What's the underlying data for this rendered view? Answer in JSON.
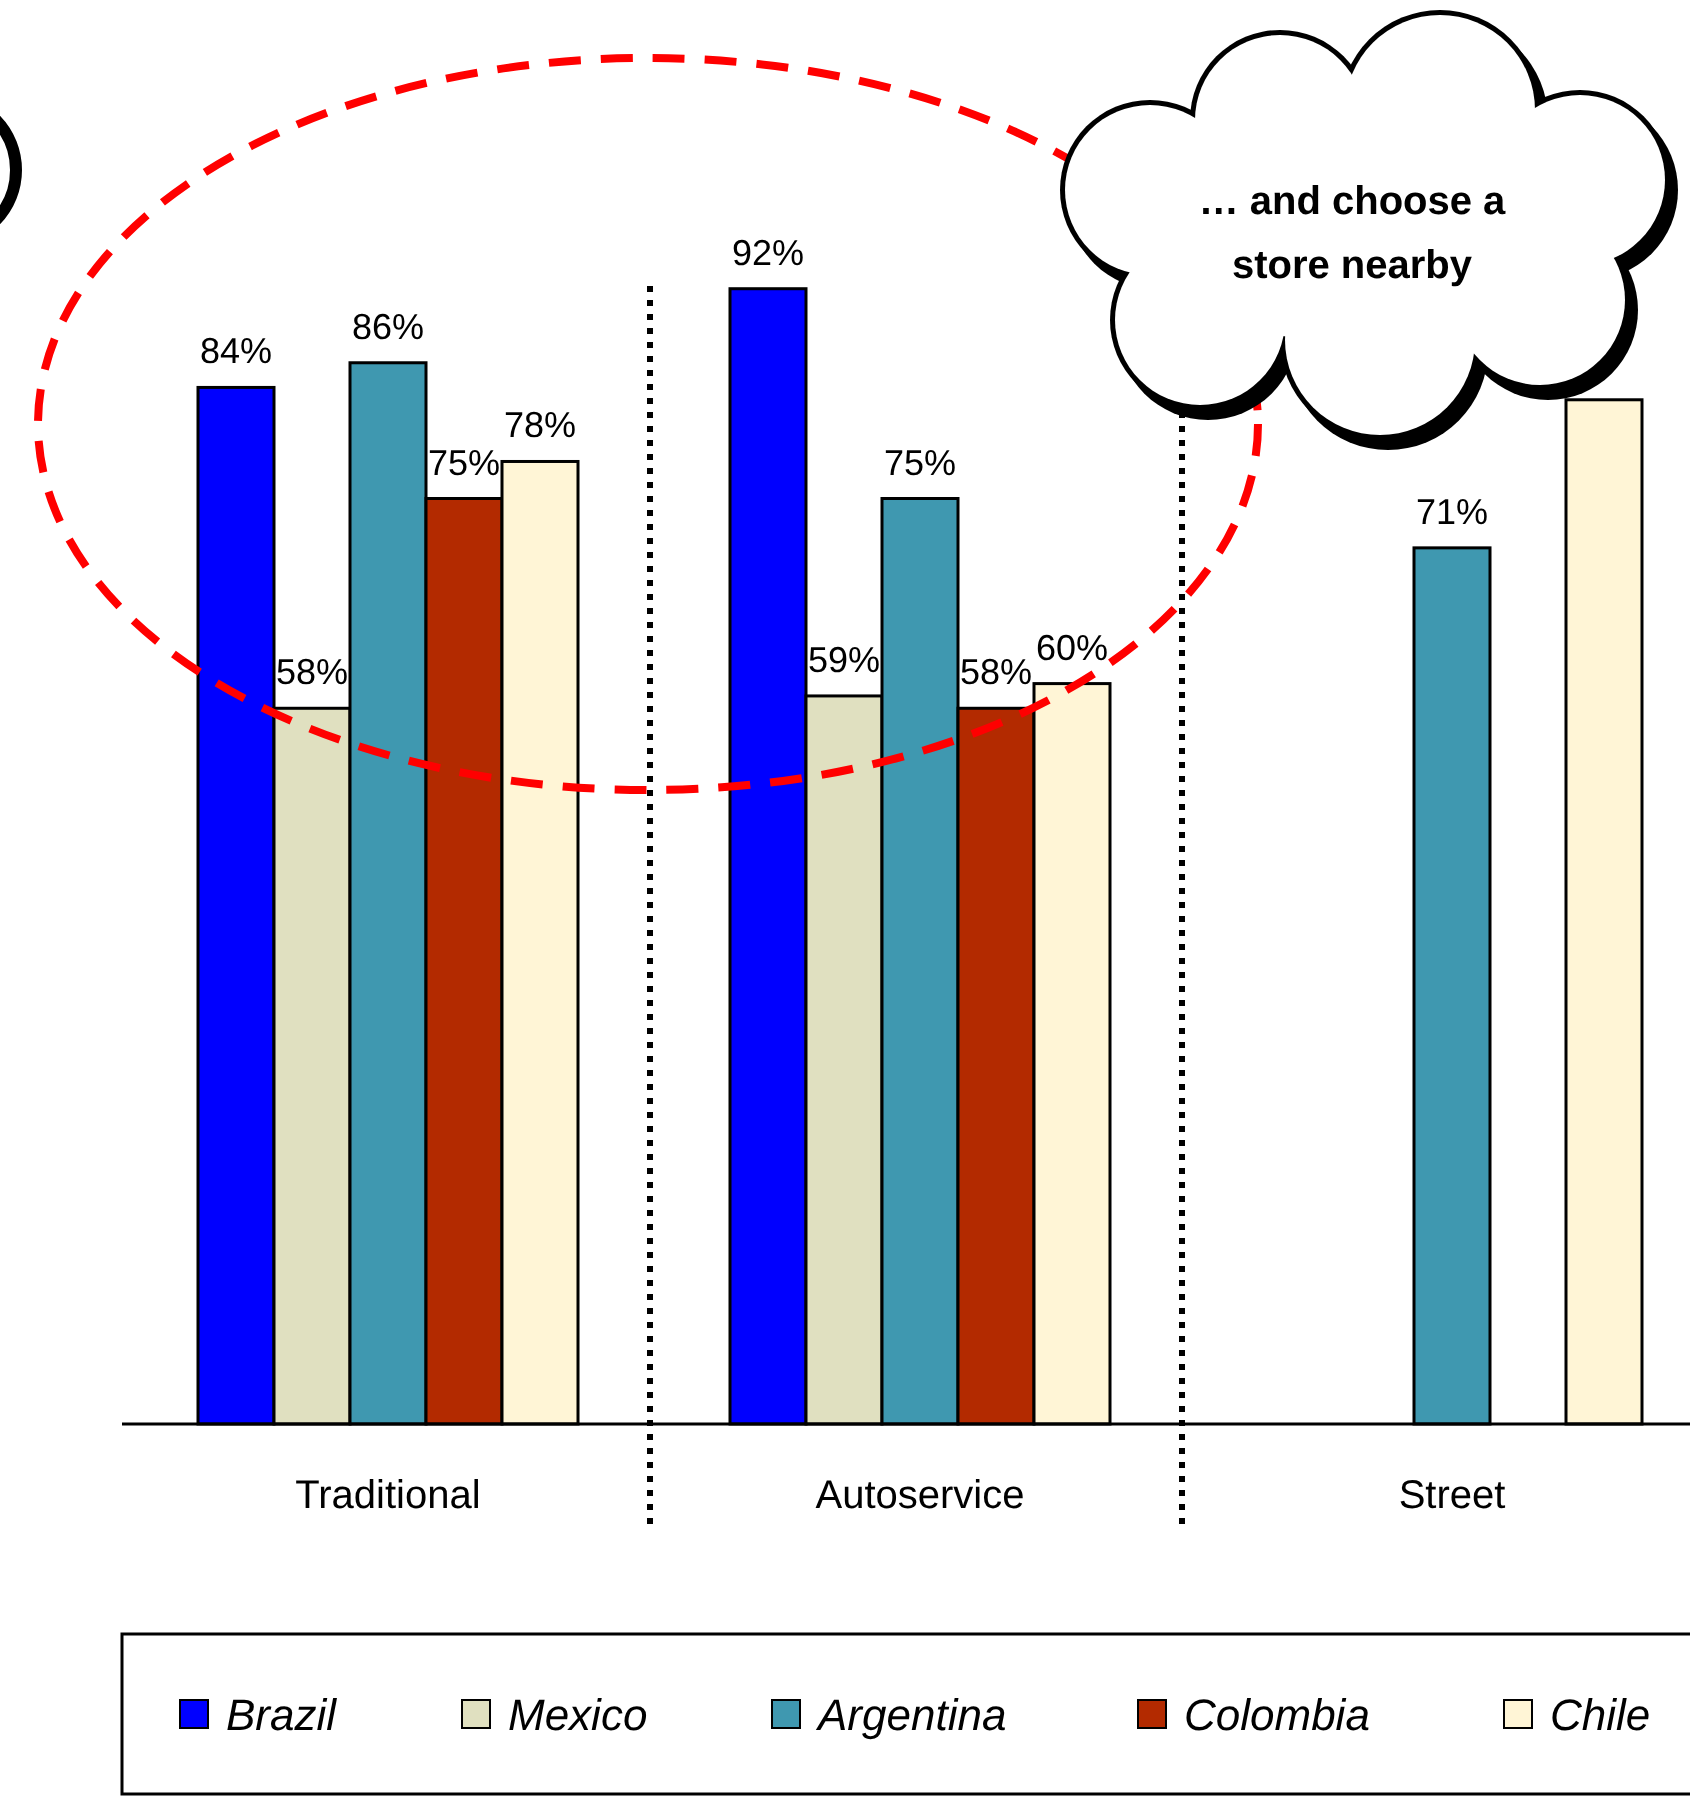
{
  "chart_data": {
    "type": "bar",
    "categories": [
      "Traditional",
      "Autoservice",
      "Street"
    ],
    "series": [
      {
        "name": "Brazil",
        "color": "#0000ff",
        "values": [
          84,
          92,
          null
        ],
        "value_labels": [
          "84%",
          "92%",
          null
        ]
      },
      {
        "name": "Mexico",
        "color": "#e0e0c0",
        "values": [
          58,
          59,
          null
        ],
        "value_labels": [
          "58%",
          "59%",
          null
        ]
      },
      {
        "name": "Argentina",
        "color": "#3f98b0",
        "values": [
          86,
          75,
          71
        ],
        "value_labels": [
          "86%",
          "75%",
          "71%"
        ]
      },
      {
        "name": "Colombia",
        "color": "#b32a00",
        "values": [
          75,
          58,
          null
        ],
        "value_labels": [
          "75%",
          "58%",
          null
        ]
      },
      {
        "name": "Chile",
        "color": "#fff5d6",
        "values": [
          78,
          60,
          83
        ],
        "value_labels": [
          "78%",
          "60%",
          null
        ]
      }
    ],
    "tick_labels": "x",
    "legend": "bottom",
    "annotations": [
      "… and choose a store nearby"
    ]
  }
}
